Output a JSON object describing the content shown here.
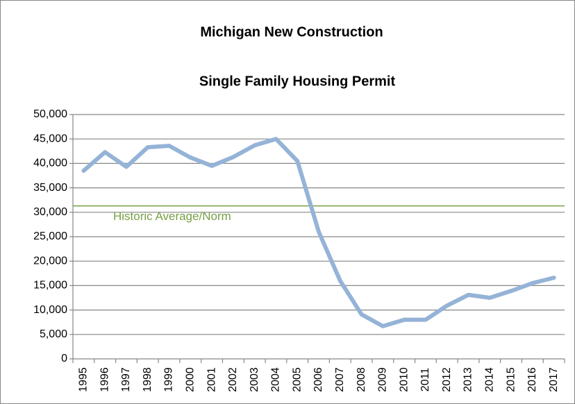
{
  "chart_data": {
    "type": "line",
    "title": "Michigan New Construction",
    "subtitle": "Single Family Housing Permit",
    "categories": [
      "1995",
      "1996",
      "1997",
      "1998",
      "1999",
      "2000",
      "2001",
      "2002",
      "2003",
      "2004",
      "2005",
      "2006",
      "2007",
      "2008",
      "2009",
      "2010",
      "2011",
      "2012",
      "2013",
      "2014",
      "2015",
      "2016",
      "2017"
    ],
    "series": [
      {
        "name": "Single Family Housing Permits",
        "color": "#95b3d7",
        "values": [
          38500,
          42300,
          39300,
          43300,
          43600,
          41200,
          39500,
          41300,
          43700,
          45000,
          40500,
          26000,
          16000,
          9100,
          6700,
          8000,
          8000,
          10900,
          13100,
          12500,
          13900,
          15500,
          16600
        ]
      }
    ],
    "reference_line": {
      "label": "Historic Average/Norm",
      "value": 31300,
      "color": "#77a043"
    },
    "ylim": [
      0,
      50000
    ],
    "yticks": [
      0,
      {
        "value": 5000,
        "label": "5,000"
      },
      {
        "value": 10000,
        "label": "10,000"
      },
      {
        "value": 15000,
        "label": "15,000"
      },
      {
        "value": 20000,
        "label": "20,000"
      },
      {
        "value": 25000,
        "label": "25,000"
      },
      {
        "value": 30000,
        "label": "30,000"
      },
      {
        "value": 35000,
        "label": "35,000"
      },
      {
        "value": 40000,
        "label": "40,000"
      },
      {
        "value": 45000,
        "label": "45,000"
      },
      {
        "value": 50000,
        "label": "50,000"
      }
    ],
    "grid": true
  }
}
